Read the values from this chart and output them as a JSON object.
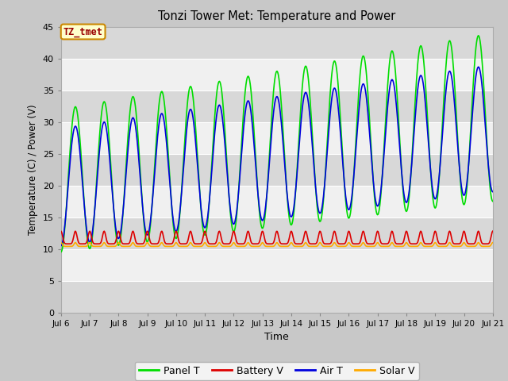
{
  "title": "Tonzi Tower Met: Temperature and Power",
  "xlabel": "Time",
  "ylabel": "Temperature (C) / Power (V)",
  "ylim": [
    0,
    45
  ],
  "yticks": [
    0,
    5,
    10,
    15,
    20,
    25,
    30,
    35,
    40,
    45
  ],
  "x_labels": [
    "Jul 6",
    "Jul 7",
    "Jul 8",
    "Jul 9",
    "Jul 10",
    "Jul 11",
    "Jul 12",
    "Jul 13",
    "Jul 14",
    "Jul 15",
    "Jul 16",
    "Jul 17",
    "Jul 18",
    "Jul 19",
    "Jul 20",
    "Jul 21"
  ],
  "annotation_text": "TZ_tmet",
  "annotation_bg": "#ffffcc",
  "annotation_border": "#cc8800",
  "annotation_text_color": "#990000",
  "fig_bg": "#c8c8c8",
  "plot_bg": "#e8e8e8",
  "stripe_light": "#f0f0f0",
  "stripe_dark": "#d8d8d8",
  "grid_color": "#ffffff",
  "series": {
    "panel_t": {
      "color": "#00dd00",
      "label": "Panel T",
      "lw": 1.2
    },
    "battery_v": {
      "color": "#dd0000",
      "label": "Battery V",
      "lw": 1.2
    },
    "air_t": {
      "color": "#0000dd",
      "label": "Air T",
      "lw": 1.2
    },
    "solar_v": {
      "color": "#ffaa00",
      "label": "Solar V",
      "lw": 1.2
    }
  }
}
